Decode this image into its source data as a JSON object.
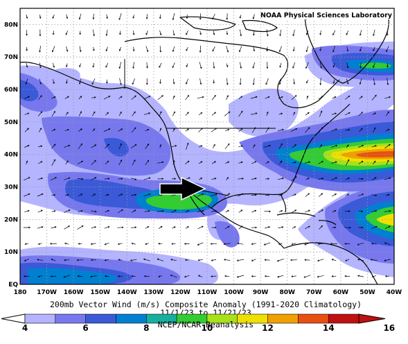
{
  "credit": "NOAA Physical Sciences Laboratory",
  "title_line1": "200mb Vector Wind (m/s) Composite Anomaly (1991-2020 Climatology)",
  "title_line2": "11/1/23 to 11/21/23",
  "title_line3": "NCEP/NCAR Reanalysis",
  "map": {
    "lon_labels": [
      "180",
      "170W",
      "160W",
      "150W",
      "140W",
      "130W",
      "120W",
      "110W",
      "100W",
      "90W",
      "80W",
      "70W",
      "60W",
      "50W",
      "40W"
    ],
    "lat_labels": [
      "EQ",
      "10N",
      "20N",
      "30N",
      "40N",
      "50N",
      "60N",
      "70N",
      "80N"
    ],
    "lon_range": [
      -180,
      -40
    ],
    "lat_range": [
      0,
      85
    ]
  },
  "colorbar": {
    "labels": [
      "4",
      "6",
      "8",
      "10",
      "12",
      "14",
      "16"
    ],
    "colors": [
      "#b4b4ff",
      "#7878ee",
      "#3a5ad8",
      "#0080d0",
      "#16b0a0",
      "#33cc33",
      "#a8e01a",
      "#f0e000",
      "#f0a000",
      "#e85010",
      "#c01010"
    ]
  },
  "colors": {
    "shade_light": "#b4b4ff",
    "shade_medium": "#7878ee",
    "shade_dark": "#3a5ad8",
    "shade_teal": "#0080d0",
    "shade_green": "#33cc33",
    "shade_yellow": "#f0e000",
    "shade_orange": "#f0a000",
    "shade_red": "#e85010",
    "annotation_arrow": "#000000"
  },
  "annotation": {
    "icon": "big-arrow-right"
  }
}
